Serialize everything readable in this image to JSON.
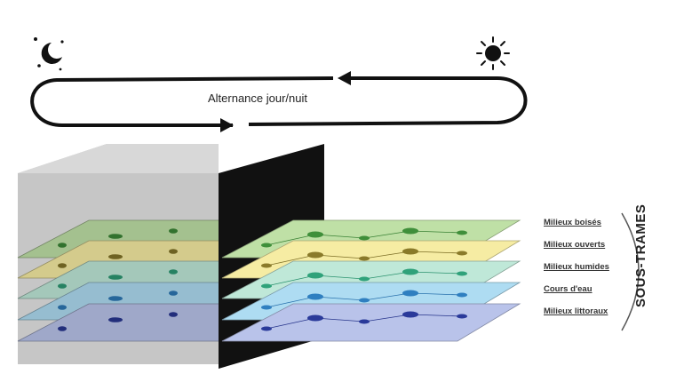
{
  "cycle": {
    "label": "Alternance jour/nuit",
    "moon_icon": "moon-stars-icon",
    "sun_icon": "sun-icon"
  },
  "layers": [
    {
      "label": "Milieux boisés",
      "color": "#bfe0a6",
      "dot": "#3f8f3a"
    },
    {
      "label": "Milieux ouverts",
      "color": "#f6eca3",
      "dot": "#8a7a2a"
    },
    {
      "label": "Milieux humides",
      "color": "#bfe8d8",
      "dot": "#2fa27a"
    },
    {
      "label": "Cours d'eau",
      "color": "#aedcf2",
      "dot": "#2f7fc0"
    },
    {
      "label": "Milieux littoraux",
      "color": "#b9c3ea",
      "dot": "#2a3a9a"
    }
  ],
  "group_label": "SOUS-TRAMES"
}
